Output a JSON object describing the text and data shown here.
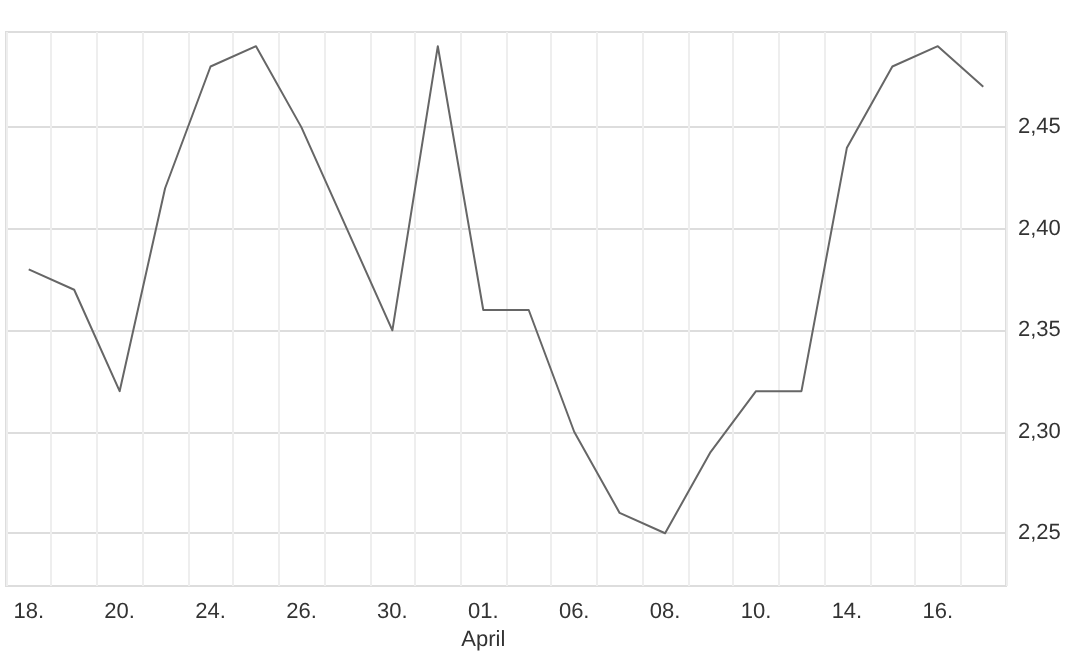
{
  "chart_data": {
    "type": "line",
    "categories": [
      "18.",
      null,
      "20.",
      null,
      "24.",
      null,
      "26.",
      null,
      "30.",
      null,
      "01.\nApril",
      null,
      "06.",
      null,
      "08.",
      null,
      "10.",
      null,
      "14.",
      null,
      "16.",
      null
    ],
    "series": [
      {
        "color": "#666666",
        "values": [
          2.38,
          2.37,
          2.32,
          2.42,
          2.48,
          2.49,
          2.45,
          2.4,
          2.35,
          2.49,
          2.36,
          2.36,
          2.3,
          2.26,
          2.25,
          2.29,
          2.32,
          2.32,
          2.44,
          2.48,
          2.49,
          2.47
        ]
      }
    ],
    "ylim": [
      2.224,
      2.497
    ],
    "yticks": [
      {
        "value": 2.25,
        "label": "2,25"
      },
      {
        "value": 2.3,
        "label": "2,30"
      },
      {
        "value": 2.35,
        "label": "2,35"
      },
      {
        "value": 2.4,
        "label": "2,40"
      },
      {
        "value": 2.45,
        "label": "2,45"
      }
    ],
    "grid": true,
    "marker": "none",
    "line_style": "solid"
  }
}
